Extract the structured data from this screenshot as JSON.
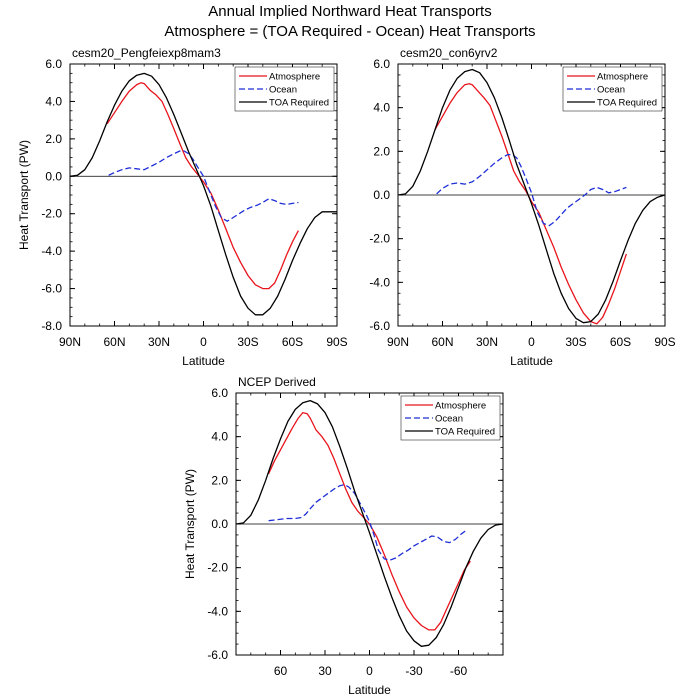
{
  "titles": {
    "line1": "Annual Implied Northward Heat Transports",
    "line2": "Atmosphere = (TOA Required - Ocean) Heat Transports"
  },
  "colors": {
    "atmosphere": "#e8141c",
    "ocean": "#1f2fd8",
    "toa": "#000000"
  },
  "chart_data": [
    {
      "type": "line",
      "title": "cesm20_Pengfeiexp8mam3",
      "xlabel": "Latitude",
      "ylabel": "Heat Transport (PW)",
      "xlim": [
        90,
        -90
      ],
      "ylim": [
        -8,
        6
      ],
      "xticks": [
        90,
        60,
        30,
        0,
        -30,
        -60,
        -90
      ],
      "xtick_labels": [
        "90N",
        "60N",
        "30N",
        "0",
        "30S",
        "60S",
        "90S"
      ],
      "yticks": [
        6,
        4,
        2,
        0,
        -2,
        -4,
        -6,
        -8
      ],
      "ytick_labels": [
        "6.0",
        "4.0",
        "2.0",
        "0.0",
        "-2.0",
        "-4.0",
        "-6.0",
        "-8.0"
      ],
      "legend": [
        "Atmosphere",
        "Ocean",
        "TOA Required"
      ],
      "series": [
        {
          "name": "Atmosphere",
          "style": "solid",
          "x": [
            65,
            60,
            55,
            50,
            45,
            42,
            40,
            36,
            32,
            28,
            24,
            20,
            16,
            12,
            8,
            4,
            0,
            -5,
            -10,
            -15,
            -20,
            -25,
            -30,
            -35,
            -40,
            -44,
            -48,
            -52,
            -56,
            -60,
            -64
          ],
          "y": [
            2.8,
            3.4,
            4.0,
            4.55,
            4.9,
            5.0,
            4.95,
            4.6,
            4.35,
            4.0,
            3.3,
            2.55,
            1.75,
            1.0,
            0.5,
            0.1,
            -0.3,
            -0.9,
            -1.8,
            -2.8,
            -3.8,
            -4.6,
            -5.3,
            -5.8,
            -6.0,
            -6.0,
            -5.7,
            -5.0,
            -4.2,
            -3.5,
            -2.9
          ]
        },
        {
          "name": "Ocean",
          "style": "dashed",
          "x": [
            64,
            60,
            55,
            50,
            45,
            40,
            35,
            30,
            25,
            20,
            16,
            13,
            10,
            7,
            4,
            0,
            -4,
            -8,
            -12,
            -16,
            -20,
            -24,
            -28,
            -32,
            -36,
            -40,
            -44,
            -48,
            -52,
            -56,
            -60,
            -64
          ],
          "y": [
            0.05,
            0.2,
            0.35,
            0.45,
            0.4,
            0.35,
            0.55,
            0.75,
            1.0,
            1.2,
            1.35,
            1.35,
            1.2,
            0.9,
            0.5,
            0.0,
            -0.8,
            -1.6,
            -2.2,
            -2.4,
            -2.2,
            -2.0,
            -1.8,
            -1.65,
            -1.55,
            -1.4,
            -1.2,
            -1.3,
            -1.45,
            -1.5,
            -1.45,
            -1.4
          ]
        },
        {
          "name": "TOA Required",
          "style": "solid",
          "x": [
            90,
            85,
            80,
            75,
            70,
            65,
            60,
            55,
            50,
            45,
            40,
            35,
            30,
            25,
            20,
            15,
            10,
            5,
            0,
            -5,
            -10,
            -15,
            -20,
            -25,
            -30,
            -35,
            -40,
            -45,
            -50,
            -55,
            -60,
            -65,
            -70,
            -75,
            -80,
            -85,
            -90
          ],
          "y": [
            0.0,
            0.05,
            0.35,
            1.0,
            1.9,
            2.9,
            3.8,
            4.55,
            5.1,
            5.4,
            5.5,
            5.35,
            4.9,
            4.2,
            3.3,
            2.3,
            1.3,
            0.4,
            -0.5,
            -1.6,
            -2.9,
            -4.2,
            -5.4,
            -6.4,
            -7.05,
            -7.4,
            -7.4,
            -7.05,
            -6.4,
            -5.5,
            -4.5,
            -3.6,
            -2.8,
            -2.2,
            -1.9,
            -1.9,
            -1.9
          ]
        }
      ]
    },
    {
      "type": "line",
      "title": "cesm20_con6yrv2",
      "xlabel": "Latitude",
      "ylabel": "",
      "xlim": [
        90,
        -90
      ],
      "ylim": [
        -6,
        6
      ],
      "xticks": [
        90,
        60,
        30,
        0,
        -30,
        -60,
        -90
      ],
      "xtick_labels": [
        "90N",
        "60N",
        "30N",
        "0",
        "30S",
        "60S",
        "90S"
      ],
      "yticks": [
        6,
        4,
        2,
        0,
        -2,
        -4,
        -6
      ],
      "ytick_labels": [
        "6.0",
        "4.0",
        "2.0",
        "0.0",
        "-2.0",
        "-4.0",
        "-6.0"
      ],
      "legend": [
        "Atmosphere",
        "Ocean",
        "TOA Required"
      ],
      "series": [
        {
          "name": "Atmosphere",
          "style": "solid",
          "x": [
            65,
            60,
            55,
            50,
            45,
            42,
            40,
            36,
            32,
            28,
            24,
            20,
            16,
            12,
            8,
            4,
            0,
            -5,
            -10,
            -15,
            -20,
            -25,
            -30,
            -35,
            -40,
            -44,
            -48,
            -52,
            -56,
            -60,
            -64
          ],
          "y": [
            3.0,
            3.6,
            4.2,
            4.7,
            5.05,
            5.1,
            5.05,
            4.75,
            4.45,
            4.1,
            3.4,
            2.7,
            1.9,
            1.1,
            0.6,
            0.2,
            -0.3,
            -0.8,
            -1.6,
            -2.4,
            -3.3,
            -4.1,
            -4.8,
            -5.4,
            -5.8,
            -5.9,
            -5.6,
            -5.0,
            -4.3,
            -3.5,
            -2.7
          ]
        },
        {
          "name": "Ocean",
          "style": "dashed",
          "x": [
            64,
            60,
            55,
            50,
            45,
            40,
            35,
            30,
            25,
            20,
            16,
            13,
            10,
            7,
            4,
            0,
            -4,
            -8,
            -12,
            -16,
            -20,
            -24,
            -28,
            -32,
            -36,
            -40,
            -44,
            -48,
            -52,
            -56,
            -60,
            -64
          ],
          "y": [
            0.05,
            0.3,
            0.5,
            0.55,
            0.5,
            0.6,
            0.85,
            1.15,
            1.45,
            1.7,
            1.85,
            1.85,
            1.7,
            1.3,
            0.8,
            0.1,
            -0.8,
            -1.3,
            -1.4,
            -1.2,
            -0.9,
            -0.6,
            -0.4,
            -0.2,
            0.0,
            0.25,
            0.35,
            0.25,
            0.1,
            0.15,
            0.25,
            0.35
          ]
        },
        {
          "name": "TOA Required",
          "style": "solid",
          "x": [
            90,
            85,
            80,
            75,
            70,
            65,
            60,
            55,
            50,
            45,
            40,
            35,
            30,
            25,
            20,
            15,
            10,
            5,
            0,
            -5,
            -10,
            -15,
            -20,
            -25,
            -30,
            -35,
            -40,
            -45,
            -50,
            -55,
            -60,
            -65,
            -70,
            -75,
            -80,
            -85,
            -90
          ],
          "y": [
            0.0,
            0.05,
            0.4,
            1.1,
            2.0,
            3.0,
            4.0,
            4.8,
            5.35,
            5.65,
            5.75,
            5.6,
            5.15,
            4.45,
            3.55,
            2.5,
            1.4,
            0.5,
            -0.4,
            -1.4,
            -2.5,
            -3.6,
            -4.5,
            -5.2,
            -5.65,
            -5.85,
            -5.8,
            -5.45,
            -4.8,
            -3.95,
            -3.0,
            -2.1,
            -1.3,
            -0.7,
            -0.3,
            -0.1,
            0.0
          ]
        }
      ]
    },
    {
      "type": "line",
      "title": "NCEP Derived",
      "xlabel": "Latitude",
      "ylabel": "Heat Transport (PW)",
      "xlim": [
        90,
        -90
      ],
      "ylim": [
        -6,
        6
      ],
      "xticks": [
        60,
        30,
        0,
        -30,
        -60
      ],
      "xtick_labels": [
        "60",
        "30",
        "0",
        "-30",
        "-60"
      ],
      "yticks": [
        6,
        4,
        2,
        0,
        -2,
        -4,
        -6
      ],
      "ytick_labels": [
        "6.0",
        "4.0",
        "2.0",
        "0.0",
        "-2.0",
        "-4.0",
        "-6.0"
      ],
      "legend": [
        "Atmosphere",
        "Ocean",
        "TOA Required"
      ],
      "series": [
        {
          "name": "Atmosphere",
          "style": "solid",
          "x": [
            68,
            64,
            60,
            56,
            52,
            48,
            45,
            42,
            40,
            36,
            32,
            28,
            24,
            20,
            16,
            12,
            8,
            4,
            0,
            -5,
            -10,
            -15,
            -20,
            -25,
            -30,
            -35,
            -40,
            -44,
            -48,
            -52,
            -56,
            -60,
            -64,
            -68
          ],
          "y": [
            2.3,
            2.9,
            3.4,
            3.9,
            4.4,
            4.85,
            5.1,
            5.05,
            4.85,
            4.3,
            4.0,
            3.6,
            3.0,
            2.3,
            1.6,
            1.0,
            0.6,
            0.3,
            0.0,
            -0.6,
            -1.4,
            -2.3,
            -3.1,
            -3.8,
            -4.3,
            -4.65,
            -4.85,
            -4.85,
            -4.5,
            -3.9,
            -3.3,
            -2.7,
            -2.1,
            -1.7
          ]
        },
        {
          "name": "Ocean",
          "style": "dashed",
          "x": [
            68,
            62,
            56,
            50,
            46,
            43,
            40,
            36,
            32,
            28,
            24,
            20,
            17,
            14,
            10,
            6,
            2,
            0,
            -3,
            -6,
            -10,
            -14,
            -18,
            -22,
            -26,
            -30,
            -34,
            -38,
            -42,
            -46,
            -50,
            -54,
            -58,
            -62,
            -66
          ],
          "y": [
            0.15,
            0.2,
            0.25,
            0.25,
            0.3,
            0.45,
            0.7,
            1.0,
            1.2,
            1.4,
            1.6,
            1.75,
            1.8,
            1.7,
            1.4,
            0.9,
            0.4,
            0.1,
            -0.5,
            -1.2,
            -1.6,
            -1.65,
            -1.55,
            -1.35,
            -1.2,
            -1.0,
            -0.85,
            -0.7,
            -0.55,
            -0.6,
            -0.8,
            -0.85,
            -0.7,
            -0.45,
            -0.25
          ]
        },
        {
          "name": "TOA Required",
          "style": "solid",
          "x": [
            90,
            85,
            80,
            75,
            70,
            65,
            60,
            55,
            50,
            45,
            40,
            35,
            30,
            25,
            20,
            15,
            10,
            5,
            0,
            -5,
            -10,
            -15,
            -20,
            -25,
            -30,
            -35,
            -40,
            -45,
            -50,
            -55,
            -60,
            -65,
            -70,
            -75,
            -80,
            -85,
            -90
          ],
          "y": [
            0.0,
            0.05,
            0.4,
            1.1,
            2.0,
            3.0,
            3.9,
            4.7,
            5.25,
            5.55,
            5.65,
            5.5,
            5.1,
            4.45,
            3.55,
            2.55,
            1.5,
            0.55,
            -0.4,
            -1.4,
            -2.4,
            -3.35,
            -4.2,
            -4.9,
            -5.35,
            -5.6,
            -5.55,
            -5.2,
            -4.6,
            -3.8,
            -2.9,
            -2.0,
            -1.25,
            -0.65,
            -0.25,
            -0.05,
            0.0
          ]
        }
      ]
    }
  ]
}
